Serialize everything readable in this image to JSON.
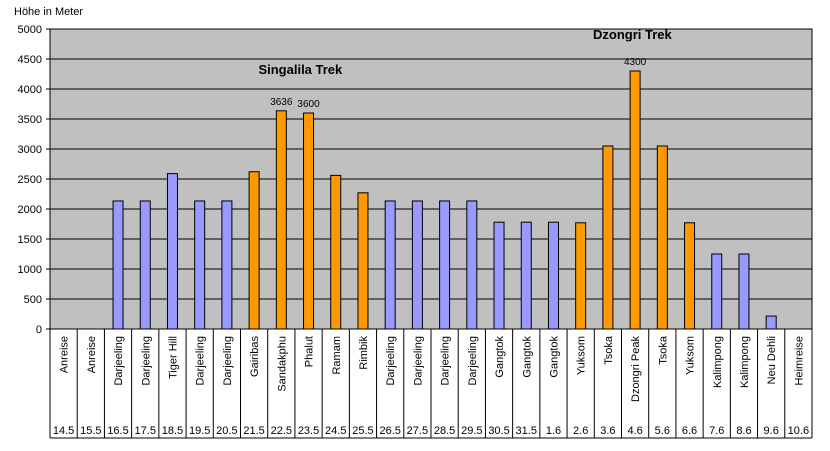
{
  "chart_data": {
    "type": "bar",
    "ylabel": "Höhe in Meter",
    "ylim": [
      0,
      5000
    ],
    "yticks": [
      0,
      500,
      1000,
      1500,
      2000,
      2500,
      3000,
      3500,
      4000,
      4500,
      5000
    ],
    "grid": true,
    "categories": [
      "Anreise",
      "Anreise",
      "Darjeeling",
      "Darjeeling",
      "Tiger Hill",
      "Darjeeling",
      "Darjeeling",
      "Gairibas",
      "Sandakphu",
      "Phalut",
      "Ramam",
      "Rimbik",
      "Darjeeling",
      "Darjeeling",
      "Darjeeling",
      "Darjeeling",
      "Gangtok",
      "Gangtok",
      "Gangtok",
      "Yuksom",
      "Tsoka",
      "Dzongri Peak",
      "Tsoka",
      "Yuksom",
      "Kalimpong",
      "Kalimpong",
      "Neu Dehli",
      "Heimreise"
    ],
    "dates": [
      "14.5",
      "15.5",
      "16.5",
      "17.5",
      "18.5",
      "19.5",
      "20.5",
      "21.5",
      "22.5",
      "23.5",
      "24.5",
      "25.5",
      "26.5",
      "27.5",
      "28.5",
      "29.5",
      "30.5",
      "31.5",
      "1.6",
      "2.6",
      "3.6",
      "4.6",
      "5.6",
      "6.6",
      "7.6",
      "8.6",
      "9.6",
      "10.6"
    ],
    "values": [
      0,
      0,
      2134,
      2134,
      2590,
      2134,
      2134,
      2621,
      3636,
      3600,
      2560,
      2270,
      2134,
      2134,
      2134,
      2134,
      1780,
      1780,
      1780,
      1770,
      3050,
      4300,
      3050,
      1770,
      1250,
      1250,
      216,
      0
    ],
    "series_types": [
      "none",
      "none",
      "other",
      "other",
      "other",
      "other",
      "other",
      "trek",
      "trek",
      "trek",
      "trek",
      "trek",
      "other",
      "other",
      "other",
      "other",
      "other",
      "other",
      "other",
      "trek",
      "trek",
      "trek",
      "trek",
      "trek",
      "other",
      "other",
      "other",
      "none"
    ],
    "colors": {
      "other": "#9999ff",
      "trek": "#ff9900",
      "plot_bg": "#c0c0c0",
      "grid": "#000000"
    },
    "annotations": [
      {
        "index": 8,
        "text": "3636"
      },
      {
        "index": 9,
        "text": "3600"
      },
      {
        "index": 21,
        "text": "4300"
      }
    ],
    "trek_labels": [
      {
        "text": "Singalila Trek",
        "near_index": 8.7,
        "y_value": 4250
      },
      {
        "text": "Dzongri Trek",
        "near_index": 20.9,
        "y_value": 4830
      }
    ]
  }
}
